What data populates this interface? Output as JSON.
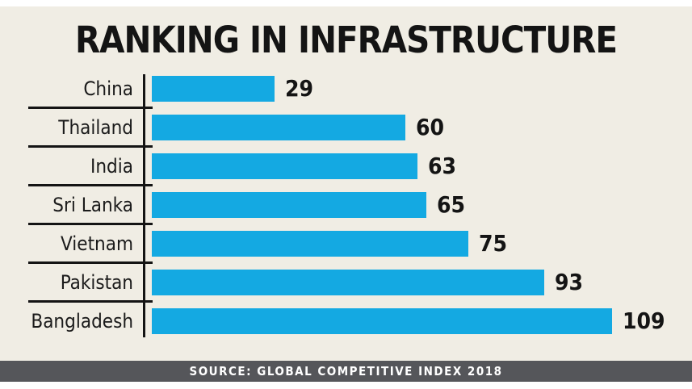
{
  "chart_data": {
    "type": "bar",
    "orientation": "horizontal",
    "title": "RANKING IN INFRASTRUCTURE",
    "categories": [
      "China",
      "Thailand",
      "India",
      "Sri Lanka",
      "Vietnam",
      "Pakistan",
      "Bangladesh"
    ],
    "values": [
      29,
      60,
      63,
      65,
      75,
      93,
      109
    ],
    "xlim": [
      0,
      115
    ],
    "grid": false,
    "legend": false,
    "data_labels": true,
    "bar_color": "#14a9e2",
    "axis_color": "#141414",
    "background_color": "#f0ede4",
    "source": "SOURCE: GLOBAL COMPETITIVE INDEX 2018",
    "source_bar_color": "#55565a"
  }
}
